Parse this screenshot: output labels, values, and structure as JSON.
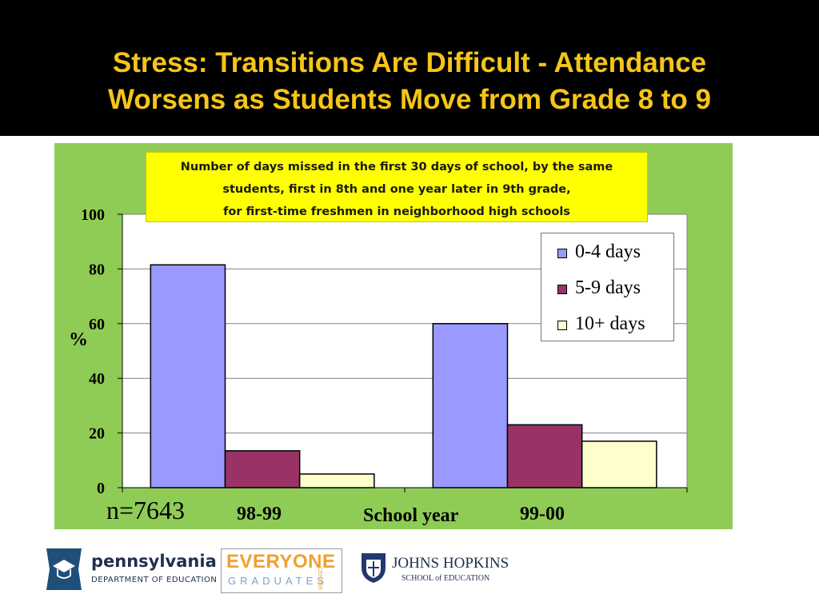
{
  "slide": {
    "title_line1": "Stress: Transitions Are Difficult - Attendance",
    "title_line2": "Worsens as Students Move from Grade 8 to 9"
  },
  "chart_data": {
    "type": "bar",
    "title_lines": [
      "Number of days missed in the first 30 days of school,  by the same",
      "students, first in 8th and one year later in 9th grade,",
      "for first-time freshmen in neighborhood high schools"
    ],
    "categories": [
      "98-99",
      "99-00"
    ],
    "series": [
      {
        "name": "0-4 days",
        "values": [
          81.5,
          60
        ],
        "color": "#9999ff"
      },
      {
        "name": "5-9 days",
        "values": [
          13.5,
          23
        ],
        "color": "#993366"
      },
      {
        "name": "10+ days",
        "values": [
          5,
          17
        ],
        "color": "#ffffcc"
      }
    ],
    "xlabel": "School year",
    "ylabel": "%",
    "ylim": [
      0,
      100
    ],
    "yticks": [
      "0",
      "20",
      "40",
      "60",
      "80",
      "100"
    ],
    "grid": true,
    "legend_position": "top-right",
    "annotation": "n=7643",
    "plot_background": "#ffffff",
    "panel_background": "#8fcc55"
  },
  "logos": {
    "pa_name": "pennsylvania",
    "pa_dept": "DEPARTMENT OF EDUCATION",
    "eg_top": "EVERYONE",
    "eg_bottom": "GRADUATES",
    "eg_side": "CENTER",
    "jh_name": "JOHNS HOPKINS",
    "jh_school": "SCHOOL of EDUCATION"
  }
}
